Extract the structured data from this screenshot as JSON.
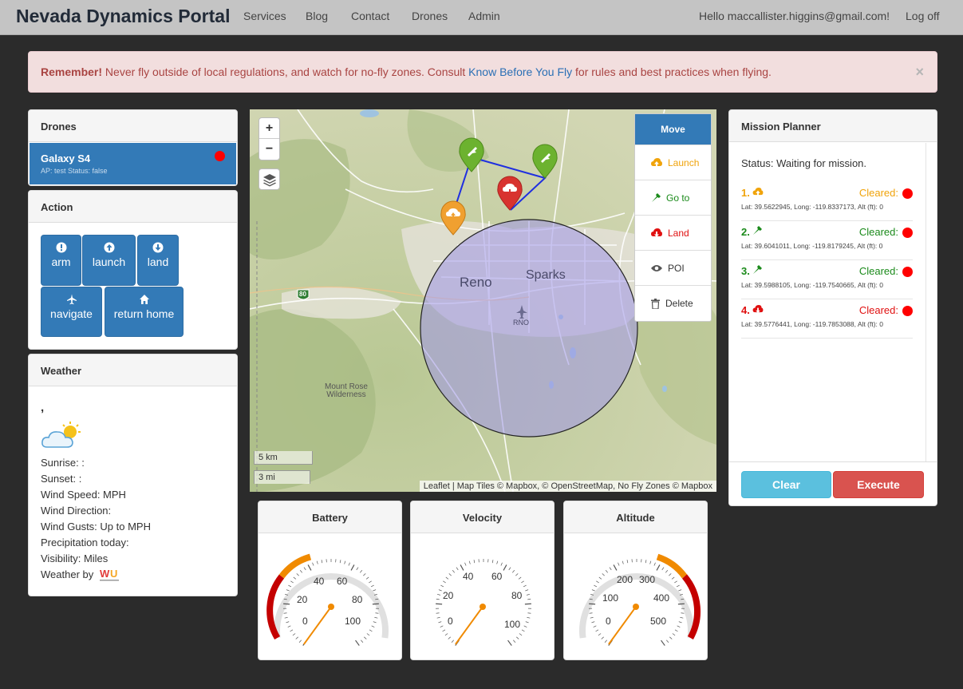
{
  "nav": {
    "brand": "Nevada Dynamics Portal",
    "links": [
      "Services",
      "Blog",
      "Contact",
      "Drones",
      "Admin"
    ],
    "greeting": "Hello maccallister.higgins@gmail.com!",
    "logoff": "Log off"
  },
  "alert": {
    "strong": "Remember!",
    "text_before": " Never fly outside of local regulations, and watch for no-fly zones. Consult ",
    "link": "Know Before You Fly",
    "text_after": " for rules and best practices when flying.",
    "close": "×"
  },
  "drones": {
    "title": "Drones",
    "items": [
      {
        "name": "Galaxy S4",
        "sub": "AP: test Status: false",
        "status_color": "#ff0000"
      }
    ]
  },
  "action": {
    "title": "Action",
    "buttons": [
      "arm",
      "launch",
      "land",
      "navigate",
      "return home"
    ]
  },
  "weather": {
    "title": "Weather",
    "location": ",",
    "sunrise": "Sunrise: :",
    "sunset": "Sunset: :",
    "wind_speed": "Wind Speed: MPH",
    "wind_direction": "Wind Direction:",
    "wind_gusts": "Wind Gusts: Up to MPH",
    "precipitation": "Precipitation today:",
    "visibility": "Visibility: Miles",
    "weather_by": "Weather by",
    "logo_text": "WU"
  },
  "map": {
    "zoom_in": "+",
    "zoom_out": "−",
    "scale_km": "5 km",
    "scale_mi": "3 mi",
    "attribution": "Leaflet | Map Tiles © Mapbox, © OpenStreetMap, No Fly Zones © Mapbox",
    "labels": {
      "reno": "Reno",
      "sparks": "Sparks",
      "reno_airport": "RNO",
      "mount_rose": "Mount Rose\nWilderness",
      "highway": "80"
    },
    "toolbar": {
      "move": "Move",
      "launch": "Launch",
      "goto": "Go to",
      "land": "Land",
      "poi": "POI",
      "delete": "Delete"
    }
  },
  "gauges": {
    "battery": {
      "title": "Battery",
      "ticks": [
        "0",
        "20",
        "40",
        "60",
        "80",
        "100"
      ],
      "value": 0
    },
    "velocity": {
      "title": "Velocity",
      "ticks": [
        "0",
        "20",
        "40",
        "60",
        "80",
        "100"
      ],
      "value": 0
    },
    "altitude": {
      "title": "Altitude",
      "ticks": [
        "0",
        "100",
        "200",
        "300",
        "400",
        "500"
      ],
      "value": 0
    }
  },
  "mission": {
    "title": "Mission Planner",
    "status": "Status: Waiting for mission.",
    "items": [
      {
        "num": "1.",
        "type": "launch",
        "color": "#f0a30a",
        "cleared": "Cleared:",
        "coords": "Lat: 39.5622945, Long: -119.8337173, Alt (ft): 0"
      },
      {
        "num": "2.",
        "type": "goto",
        "color": "#1a8a1a",
        "cleared": "Cleared:",
        "coords": "Lat: 39.6041011, Long: -119.8179245, Alt (ft): 0"
      },
      {
        "num": "3.",
        "type": "goto",
        "color": "#1a8a1a",
        "cleared": "Cleared:",
        "coords": "Lat: 39.5988105, Long: -119.7540665, Alt (ft): 0"
      },
      {
        "num": "4.",
        "type": "land",
        "color": "#e01010",
        "cleared": "Cleared:",
        "coords": "Lat: 39.5776441, Long: -119.7853088, Alt (ft): 0"
      }
    ],
    "clear": "Clear",
    "execute": "Execute"
  },
  "colors": {
    "primary": "#337ab7",
    "launch": "#f0a30a",
    "goto": "#1a8a1a",
    "land": "#e01010",
    "info": "#5bc0de",
    "danger": "#d9534f"
  }
}
